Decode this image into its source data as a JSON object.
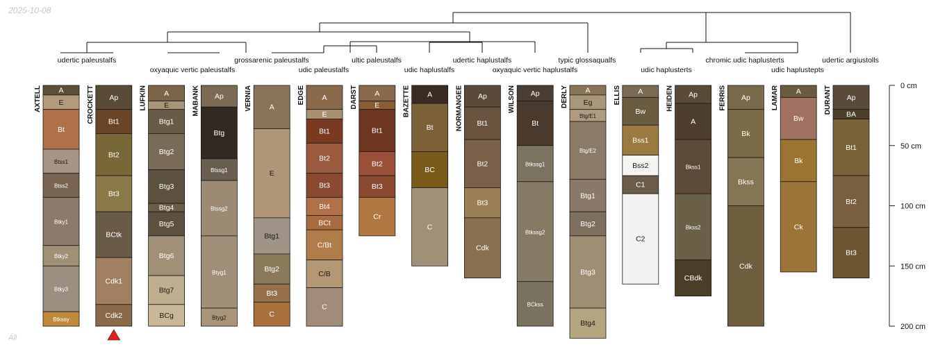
{
  "header": {
    "date": "2025-10-08"
  },
  "footer": {
    "label": "All"
  },
  "depth_axis": {
    "unit": "cm",
    "max_depth": 200,
    "ticks": [
      {
        "value": 0,
        "label": "0 cm"
      },
      {
        "value": 50,
        "label": "50 cm"
      },
      {
        "value": 100,
        "label": "100 cm"
      },
      {
        "value": 150,
        "label": "150 cm"
      },
      {
        "value": 200,
        "label": "200 cm"
      }
    ]
  },
  "chart_data": {
    "type": "dendrogram-with-soil-profiles",
    "title": "",
    "marker": {
      "profile": "CROCKETT",
      "shape": "triangle",
      "color": "#e02020"
    },
    "profiles": [
      {
        "name": "AXTELL",
        "horizons": [
          {
            "name": "A",
            "top": 0,
            "bottom": 8,
            "color": "#5c4e38"
          },
          {
            "name": "E",
            "top": 8,
            "bottom": 20,
            "color": "#b49a7c"
          },
          {
            "name": "Bt",
            "top": 20,
            "bottom": 53,
            "color": "#b07048"
          },
          {
            "name": "Btss1",
            "top": 53,
            "bottom": 73,
            "color": "#a89484"
          },
          {
            "name": "Btss2",
            "top": 73,
            "bottom": 93,
            "color": "#786450"
          },
          {
            "name": "Btky1",
            "top": 93,
            "bottom": 133,
            "color": "#8c7a6a"
          },
          {
            "name": "Btky2",
            "top": 133,
            "bottom": 150,
            "color": "#a09078"
          },
          {
            "name": "Btky3",
            "top": 150,
            "bottom": 188,
            "color": "#9c8e80"
          },
          {
            "name": "Btkssy",
            "top": 188,
            "bottom": 200,
            "color": "#c08a3c"
          }
        ]
      },
      {
        "name": "CROCKETT",
        "horizons": [
          {
            "name": "Ap",
            "top": 0,
            "bottom": 20,
            "color": "#5a4a38"
          },
          {
            "name": "Bt1",
            "top": 20,
            "bottom": 40,
            "color": "#6a4428"
          },
          {
            "name": "Bt2",
            "top": 40,
            "bottom": 75,
            "color": "#786838"
          },
          {
            "name": "Bt3",
            "top": 75,
            "bottom": 105,
            "color": "#8a7a48"
          },
          {
            "name": "BCtk",
            "top": 105,
            "bottom": 143,
            "color": "#6a5a48"
          },
          {
            "name": "Cdk1",
            "top": 143,
            "bottom": 182,
            "color": "#a08060"
          },
          {
            "name": "Cdk2",
            "top": 182,
            "bottom": 200,
            "color": "#8a6a48"
          }
        ]
      },
      {
        "name": "LUFKIN",
        "horizons": [
          {
            "name": "A",
            "top": 0,
            "bottom": 13,
            "color": "#7c6448"
          },
          {
            "name": "E",
            "top": 13,
            "bottom": 20,
            "color": "#a89478"
          },
          {
            "name": "Btg1",
            "top": 20,
            "bottom": 40,
            "color": "#6a5a48"
          },
          {
            "name": "Btg2",
            "top": 40,
            "bottom": 70,
            "color": "#7a6a58"
          },
          {
            "name": "Btg3",
            "top": 70,
            "bottom": 98,
            "color": "#5c5040"
          },
          {
            "name": "Btg4",
            "top": 98,
            "bottom": 105,
            "color": "#6a5c48"
          },
          {
            "name": "Btg5",
            "top": 105,
            "bottom": 125,
            "color": "#5c5040"
          },
          {
            "name": "Btg6",
            "top": 125,
            "bottom": 158,
            "color": "#a09078"
          },
          {
            "name": "Btg7",
            "top": 158,
            "bottom": 182,
            "color": "#beae90"
          },
          {
            "name": "BCg",
            "top": 182,
            "bottom": 200,
            "color": "#c8b898"
          }
        ]
      },
      {
        "name": "MABANK",
        "horizons": [
          {
            "name": "Ap",
            "top": 0,
            "bottom": 18,
            "color": "#7c6a54"
          },
          {
            "name": "Btg",
            "top": 18,
            "bottom": 61,
            "color": "#322a22"
          },
          {
            "name": "Btssg1",
            "top": 61,
            "bottom": 79,
            "color": "#6a5e50"
          },
          {
            "name": "Btssg2",
            "top": 79,
            "bottom": 125,
            "color": "#9c8a74"
          },
          {
            "name": "Btyg1",
            "top": 125,
            "bottom": 185,
            "color": "#a08e78"
          },
          {
            "name": "Btyg2",
            "top": 185,
            "bottom": 200,
            "color": "#a89478"
          }
        ]
      },
      {
        "name": "VERNIA",
        "horizons": [
          {
            "name": "A",
            "top": 0,
            "bottom": 36,
            "color": "#8a7458"
          },
          {
            "name": "E",
            "top": 36,
            "bottom": 110,
            "color": "#b09676"
          },
          {
            "name": "Btg1",
            "top": 110,
            "bottom": 140,
            "color": "#a09488"
          },
          {
            "name": "Btg2",
            "top": 140,
            "bottom": 165,
            "color": "#8a7a5a"
          },
          {
            "name": "Bt3",
            "top": 165,
            "bottom": 180,
            "color": "#96704a"
          },
          {
            "name": "C",
            "top": 180,
            "bottom": 200,
            "color": "#a8703c"
          }
        ]
      },
      {
        "name": "EDGE",
        "horizons": [
          {
            "name": "A",
            "top": 0,
            "bottom": 20,
            "color": "#8a6a4c"
          },
          {
            "name": "E",
            "top": 20,
            "bottom": 28,
            "color": "#a89070"
          },
          {
            "name": "Bt1",
            "top": 28,
            "bottom": 48,
            "color": "#7a3a22"
          },
          {
            "name": "Bt2",
            "top": 48,
            "bottom": 73,
            "color": "#9a5a40"
          },
          {
            "name": "Bt3",
            "top": 73,
            "bottom": 93,
            "color": "#8a4a32"
          },
          {
            "name": "Bt4",
            "top": 93,
            "bottom": 108,
            "color": "#b07048"
          },
          {
            "name": "BCt",
            "top": 108,
            "bottom": 120,
            "color": "#a86a3e"
          },
          {
            "name": "C/Bt",
            "top": 120,
            "bottom": 145,
            "color": "#b07c4a"
          },
          {
            "name": "C/B",
            "top": 145,
            "bottom": 168,
            "color": "#b49874"
          },
          {
            "name": "C",
            "top": 168,
            "bottom": 200,
            "color": "#a08c78"
          }
        ]
      },
      {
        "name": "DARST",
        "horizons": [
          {
            "name": "A",
            "top": 0,
            "bottom": 13,
            "color": "#8a6a4c"
          },
          {
            "name": "E",
            "top": 13,
            "bottom": 20,
            "color": "#8a5c34"
          },
          {
            "name": "Bt1",
            "top": 20,
            "bottom": 55,
            "color": "#6e3620"
          },
          {
            "name": "Bt2",
            "top": 55,
            "bottom": 75,
            "color": "#9a5038"
          },
          {
            "name": "Bt3",
            "top": 75,
            "bottom": 93,
            "color": "#8a4830"
          },
          {
            "name": "Cr",
            "top": 93,
            "bottom": 125,
            "color": "#b07840"
          }
        ]
      },
      {
        "name": "BAZETTE",
        "horizons": [
          {
            "name": "A",
            "top": 0,
            "bottom": 15,
            "color": "#3a2c22"
          },
          {
            "name": "Bt",
            "top": 15,
            "bottom": 55,
            "color": "#7c6038"
          },
          {
            "name": "BC",
            "top": 55,
            "bottom": 85,
            "color": "#7a5a18"
          },
          {
            "name": "C",
            "top": 85,
            "bottom": 150,
            "color": "#a09078"
          }
        ]
      },
      {
        "name": "NORMANGEE",
        "horizons": [
          {
            "name": "Ap",
            "top": 0,
            "bottom": 18,
            "color": "#5a4a3a"
          },
          {
            "name": "Bt1",
            "top": 18,
            "bottom": 45,
            "color": "#6a5440"
          },
          {
            "name": "Bt2",
            "top": 45,
            "bottom": 85,
            "color": "#7a6048"
          },
          {
            "name": "Bt3",
            "top": 85,
            "bottom": 110,
            "color": "#9a8054"
          },
          {
            "name": "Cdk",
            "top": 110,
            "bottom": 160,
            "color": "#8a7050"
          }
        ]
      },
      {
        "name": "WILSON",
        "horizons": [
          {
            "name": "Ap",
            "top": 0,
            "bottom": 13,
            "color": "#4a3e34"
          },
          {
            "name": "Bt",
            "top": 13,
            "bottom": 50,
            "color": "#4a3a2e"
          },
          {
            "name": "Btkssg1",
            "top": 50,
            "bottom": 80,
            "color": "#7c7260"
          },
          {
            "name": "Btkssg2",
            "top": 80,
            "bottom": 163,
            "color": "#857a64"
          },
          {
            "name": "BCkss",
            "top": 163,
            "bottom": 200,
            "color": "#7a7260"
          }
        ]
      },
      {
        "name": "DERLY",
        "horizons": [
          {
            "name": "A",
            "top": 0,
            "bottom": 8,
            "color": "#8a7458"
          },
          {
            "name": "Eg",
            "top": 8,
            "bottom": 20,
            "color": "#a89878"
          },
          {
            "name": "Btg/E1",
            "top": 20,
            "bottom": 30,
            "color": "#b09a80"
          },
          {
            "name": "Btg/E2",
            "top": 30,
            "bottom": 78,
            "color": "#8a7a68"
          },
          {
            "name": "Btg1",
            "top": 78,
            "bottom": 105,
            "color": "#8a7868"
          },
          {
            "name": "Btg2",
            "top": 105,
            "bottom": 125,
            "color": "#7e6e5e"
          },
          {
            "name": "Btg3",
            "top": 125,
            "bottom": 185,
            "color": "#a08e74"
          },
          {
            "name": "Btg4",
            "top": 185,
            "bottom": 210,
            "color": "#b4a480"
          }
        ]
      },
      {
        "name": "ELLIS",
        "horizons": [
          {
            "name": "A",
            "top": 0,
            "bottom": 10,
            "color": "#7a6a54"
          },
          {
            "name": "Bw",
            "top": 10,
            "bottom": 33,
            "color": "#6a5c3e"
          },
          {
            "name": "Bss1",
            "top": 33,
            "bottom": 58,
            "color": "#9a7a40"
          },
          {
            "name": "Bss2",
            "top": 58,
            "bottom": 75,
            "color": "#f4f4f0"
          },
          {
            "name": "C1",
            "top": 75,
            "bottom": 90,
            "color": "#6a5c48"
          },
          {
            "name": "C2",
            "top": 90,
            "bottom": 165,
            "color": "#f2f2f2"
          }
        ]
      },
      {
        "name": "HEIDEN",
        "horizons": [
          {
            "name": "Ap",
            "top": 0,
            "bottom": 15,
            "color": "#5a4a38"
          },
          {
            "name": "A",
            "top": 15,
            "bottom": 45,
            "color": "#4e3e30"
          },
          {
            "name": "Bkss1",
            "top": 45,
            "bottom": 90,
            "color": "#5e4a38"
          },
          {
            "name": "Bkss2",
            "top": 90,
            "bottom": 145,
            "color": "#6a6048"
          },
          {
            "name": "CBdk",
            "top": 145,
            "bottom": 175,
            "color": "#4a3e28"
          }
        ]
      },
      {
        "name": "FERRIS",
        "horizons": [
          {
            "name": "Ap",
            "top": 0,
            "bottom": 20,
            "color": "#7a6a4c"
          },
          {
            "name": "Bk",
            "top": 20,
            "bottom": 60,
            "color": "#7a6a48"
          },
          {
            "name": "Bkss",
            "top": 60,
            "bottom": 100,
            "color": "#847654"
          },
          {
            "name": "Cdk",
            "top": 100,
            "bottom": 200,
            "color": "#6e5e3e"
          }
        ]
      },
      {
        "name": "LAMAR",
        "horizons": [
          {
            "name": "A",
            "top": 0,
            "bottom": 10,
            "color": "#6a5a40"
          },
          {
            "name": "Bw",
            "top": 10,
            "bottom": 45,
            "color": "#a07060"
          },
          {
            "name": "Bk",
            "top": 45,
            "bottom": 80,
            "color": "#9a7430"
          },
          {
            "name": "Ck",
            "top": 80,
            "bottom": 155,
            "color": "#9c7438"
          }
        ]
      },
      {
        "name": "DURANT",
        "horizons": [
          {
            "name": "Ap",
            "top": 0,
            "bottom": 20,
            "color": "#5a4a3a"
          },
          {
            "name": "BA",
            "top": 20,
            "bottom": 28,
            "color": "#4e4028"
          },
          {
            "name": "Bt1",
            "top": 28,
            "bottom": 75,
            "color": "#7a6238"
          },
          {
            "name": "Bt2",
            "top": 75,
            "bottom": 118,
            "color": "#7a5e40"
          },
          {
            "name": "Bt3",
            "top": 118,
            "bottom": 160,
            "color": "#6e5430"
          }
        ]
      }
    ],
    "dendrogram_labels": [
      "udertic paleustalfs",
      "oxyaquic vertic paleustalfs",
      "grossarenic paleustalfs",
      "udic paleustalfs",
      "ultic paleustalfs",
      "udic haplustalfs",
      "udertic haplustalfs",
      "oxyaquic vertic haplustalfs",
      "typic glossaqualfs",
      "udic haplusterts",
      "chromic udic haplusterts",
      "udic haplustepts",
      "udertic argiustolls"
    ]
  }
}
